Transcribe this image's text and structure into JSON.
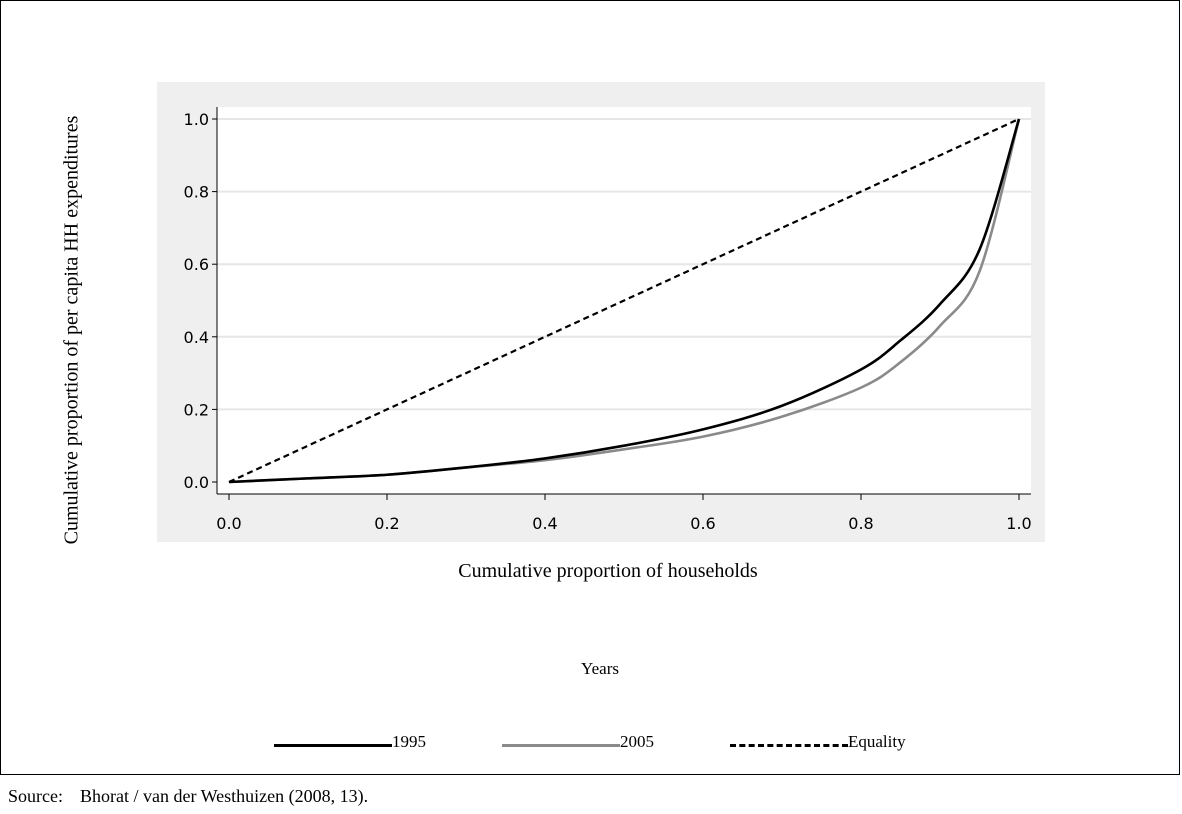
{
  "chart_data": {
    "type": "line",
    "ylabel": "Cumulative proportion of per capita HH expenditures",
    "xlabel": "Cumulative proportion of households",
    "xlim": [
      0,
      1
    ],
    "ylim": [
      0,
      1
    ],
    "x_ticks": [
      "0.0",
      "0.2",
      "0.4",
      "0.6",
      "0.8",
      "1.0"
    ],
    "y_ticks": [
      "0.0",
      "0.2",
      "0.4",
      "0.6",
      "0.8",
      "1.0"
    ],
    "grid": "horizontal",
    "legend_title": "Years",
    "legend_position": "bottom",
    "series": [
      {
        "name": "1995",
        "color": "#000000",
        "style": "solid",
        "x": [
          0,
          0.1,
          0.2,
          0.3,
          0.4,
          0.5,
          0.6,
          0.7,
          0.8,
          0.85,
          0.9,
          0.95,
          1.0
        ],
        "y": [
          0,
          0.01,
          0.02,
          0.04,
          0.065,
          0.1,
          0.145,
          0.21,
          0.31,
          0.39,
          0.49,
          0.64,
          1.0
        ]
      },
      {
        "name": "2005",
        "color": "#8a8a8a",
        "style": "solid",
        "x": [
          0,
          0.1,
          0.2,
          0.3,
          0.4,
          0.5,
          0.6,
          0.7,
          0.8,
          0.85,
          0.9,
          0.95,
          1.0
        ],
        "y": [
          0,
          0.01,
          0.02,
          0.04,
          0.06,
          0.09,
          0.125,
          0.18,
          0.26,
          0.33,
          0.43,
          0.58,
          1.0
        ]
      },
      {
        "name": "Equality",
        "color": "#000000",
        "style": "dashed",
        "x": [
          0,
          1
        ],
        "y": [
          0,
          1
        ]
      }
    ]
  },
  "source": {
    "label": "Source:",
    "text": "Bhorat / van der Westhuizen (2008, 13)."
  }
}
